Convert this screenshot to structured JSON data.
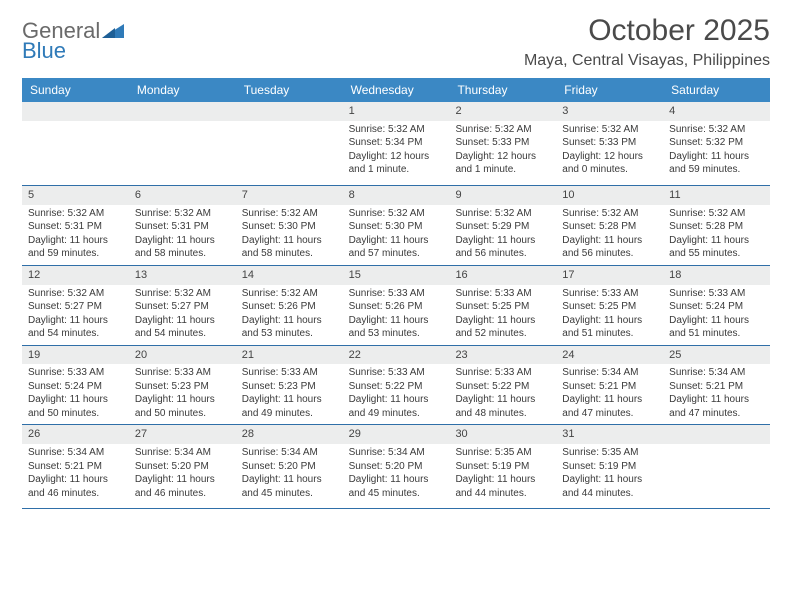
{
  "logo": {
    "line1": "General",
    "line2": "Blue"
  },
  "title": "October 2025",
  "location": "Maya, Central Visayas, Philippines",
  "colors": {
    "header_bg": "#3b88c4",
    "header_text": "#ffffff",
    "daynum_bg": "#eceded",
    "border": "#2f6fa8",
    "logo_blue": "#2f7ab8",
    "text": "#3a3a3a"
  },
  "typography": {
    "title_fontsize": 30,
    "location_fontsize": 16,
    "header_fontsize": 12,
    "daynum_fontsize": 11,
    "body_fontsize": 10
  },
  "day_labels": [
    "Sunday",
    "Monday",
    "Tuesday",
    "Wednesday",
    "Thursday",
    "Friday",
    "Saturday"
  ],
  "weeks": [
    [
      {
        "day": "",
        "sunrise": "",
        "sunset": "",
        "daylight": ""
      },
      {
        "day": "",
        "sunrise": "",
        "sunset": "",
        "daylight": ""
      },
      {
        "day": "",
        "sunrise": "",
        "sunset": "",
        "daylight": ""
      },
      {
        "day": "1",
        "sunrise": "Sunrise: 5:32 AM",
        "sunset": "Sunset: 5:34 PM",
        "daylight": "Daylight: 12 hours and 1 minute."
      },
      {
        "day": "2",
        "sunrise": "Sunrise: 5:32 AM",
        "sunset": "Sunset: 5:33 PM",
        "daylight": "Daylight: 12 hours and 1 minute."
      },
      {
        "day": "3",
        "sunrise": "Sunrise: 5:32 AM",
        "sunset": "Sunset: 5:33 PM",
        "daylight": "Daylight: 12 hours and 0 minutes."
      },
      {
        "day": "4",
        "sunrise": "Sunrise: 5:32 AM",
        "sunset": "Sunset: 5:32 PM",
        "daylight": "Daylight: 11 hours and 59 minutes."
      }
    ],
    [
      {
        "day": "5",
        "sunrise": "Sunrise: 5:32 AM",
        "sunset": "Sunset: 5:31 PM",
        "daylight": "Daylight: 11 hours and 59 minutes."
      },
      {
        "day": "6",
        "sunrise": "Sunrise: 5:32 AM",
        "sunset": "Sunset: 5:31 PM",
        "daylight": "Daylight: 11 hours and 58 minutes."
      },
      {
        "day": "7",
        "sunrise": "Sunrise: 5:32 AM",
        "sunset": "Sunset: 5:30 PM",
        "daylight": "Daylight: 11 hours and 58 minutes."
      },
      {
        "day": "8",
        "sunrise": "Sunrise: 5:32 AM",
        "sunset": "Sunset: 5:30 PM",
        "daylight": "Daylight: 11 hours and 57 minutes."
      },
      {
        "day": "9",
        "sunrise": "Sunrise: 5:32 AM",
        "sunset": "Sunset: 5:29 PM",
        "daylight": "Daylight: 11 hours and 56 minutes."
      },
      {
        "day": "10",
        "sunrise": "Sunrise: 5:32 AM",
        "sunset": "Sunset: 5:28 PM",
        "daylight": "Daylight: 11 hours and 56 minutes."
      },
      {
        "day": "11",
        "sunrise": "Sunrise: 5:32 AM",
        "sunset": "Sunset: 5:28 PM",
        "daylight": "Daylight: 11 hours and 55 minutes."
      }
    ],
    [
      {
        "day": "12",
        "sunrise": "Sunrise: 5:32 AM",
        "sunset": "Sunset: 5:27 PM",
        "daylight": "Daylight: 11 hours and 54 minutes."
      },
      {
        "day": "13",
        "sunrise": "Sunrise: 5:32 AM",
        "sunset": "Sunset: 5:27 PM",
        "daylight": "Daylight: 11 hours and 54 minutes."
      },
      {
        "day": "14",
        "sunrise": "Sunrise: 5:32 AM",
        "sunset": "Sunset: 5:26 PM",
        "daylight": "Daylight: 11 hours and 53 minutes."
      },
      {
        "day": "15",
        "sunrise": "Sunrise: 5:33 AM",
        "sunset": "Sunset: 5:26 PM",
        "daylight": "Daylight: 11 hours and 53 minutes."
      },
      {
        "day": "16",
        "sunrise": "Sunrise: 5:33 AM",
        "sunset": "Sunset: 5:25 PM",
        "daylight": "Daylight: 11 hours and 52 minutes."
      },
      {
        "day": "17",
        "sunrise": "Sunrise: 5:33 AM",
        "sunset": "Sunset: 5:25 PM",
        "daylight": "Daylight: 11 hours and 51 minutes."
      },
      {
        "day": "18",
        "sunrise": "Sunrise: 5:33 AM",
        "sunset": "Sunset: 5:24 PM",
        "daylight": "Daylight: 11 hours and 51 minutes."
      }
    ],
    [
      {
        "day": "19",
        "sunrise": "Sunrise: 5:33 AM",
        "sunset": "Sunset: 5:24 PM",
        "daylight": "Daylight: 11 hours and 50 minutes."
      },
      {
        "day": "20",
        "sunrise": "Sunrise: 5:33 AM",
        "sunset": "Sunset: 5:23 PM",
        "daylight": "Daylight: 11 hours and 50 minutes."
      },
      {
        "day": "21",
        "sunrise": "Sunrise: 5:33 AM",
        "sunset": "Sunset: 5:23 PM",
        "daylight": "Daylight: 11 hours and 49 minutes."
      },
      {
        "day": "22",
        "sunrise": "Sunrise: 5:33 AM",
        "sunset": "Sunset: 5:22 PM",
        "daylight": "Daylight: 11 hours and 49 minutes."
      },
      {
        "day": "23",
        "sunrise": "Sunrise: 5:33 AM",
        "sunset": "Sunset: 5:22 PM",
        "daylight": "Daylight: 11 hours and 48 minutes."
      },
      {
        "day": "24",
        "sunrise": "Sunrise: 5:34 AM",
        "sunset": "Sunset: 5:21 PM",
        "daylight": "Daylight: 11 hours and 47 minutes."
      },
      {
        "day": "25",
        "sunrise": "Sunrise: 5:34 AM",
        "sunset": "Sunset: 5:21 PM",
        "daylight": "Daylight: 11 hours and 47 minutes."
      }
    ],
    [
      {
        "day": "26",
        "sunrise": "Sunrise: 5:34 AM",
        "sunset": "Sunset: 5:21 PM",
        "daylight": "Daylight: 11 hours and 46 minutes."
      },
      {
        "day": "27",
        "sunrise": "Sunrise: 5:34 AM",
        "sunset": "Sunset: 5:20 PM",
        "daylight": "Daylight: 11 hours and 46 minutes."
      },
      {
        "day": "28",
        "sunrise": "Sunrise: 5:34 AM",
        "sunset": "Sunset: 5:20 PM",
        "daylight": "Daylight: 11 hours and 45 minutes."
      },
      {
        "day": "29",
        "sunrise": "Sunrise: 5:34 AM",
        "sunset": "Sunset: 5:20 PM",
        "daylight": "Daylight: 11 hours and 45 minutes."
      },
      {
        "day": "30",
        "sunrise": "Sunrise: 5:35 AM",
        "sunset": "Sunset: 5:19 PM",
        "daylight": "Daylight: 11 hours and 44 minutes."
      },
      {
        "day": "31",
        "sunrise": "Sunrise: 5:35 AM",
        "sunset": "Sunset: 5:19 PM",
        "daylight": "Daylight: 11 hours and 44 minutes."
      },
      {
        "day": "",
        "sunrise": "",
        "sunset": "",
        "daylight": ""
      }
    ]
  ]
}
